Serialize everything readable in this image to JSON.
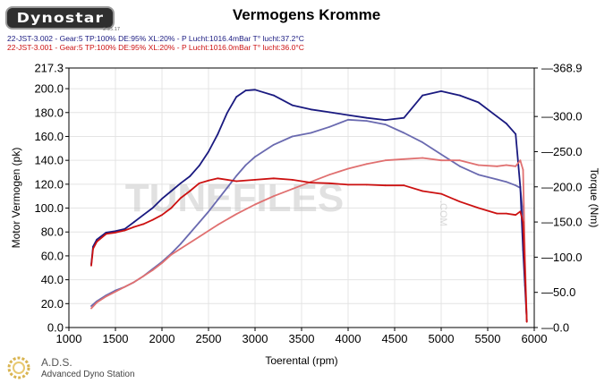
{
  "header": {
    "logo_text": "Dynostar",
    "logo_small": "2.35.17",
    "title": "Vermogens Kromme"
  },
  "runs": [
    {
      "label": "22-JST-3.002 - Gear:5 TP:100% DE:95% XL:20%   - P Lucht:1016.4mBar T° lucht:37.2°C",
      "color": "#1a1a80"
    },
    {
      "label": "22-JST-3.001 - Gear:5 TP:100% DE:95% XL:20%   - P Lucht:1016.0mBar T° lucht:36.0°C",
      "color": "#cc1111"
    }
  ],
  "watermark": {
    "text": "TUNEFILES",
    "suffix": ".COM"
  },
  "footer": {
    "name": "A.D.S.",
    "subtitle": "Advanced Dyno Station"
  },
  "chart_data": {
    "type": "line",
    "title": "Vermogens Kromme",
    "xlabel": "Toerental (rpm)",
    "ylabel": "Motor Vermogen (pk)",
    "y2label": "Torque (Nm)",
    "xlim": [
      1000,
      6000
    ],
    "ylim": [
      0,
      217.3
    ],
    "y2lim": [
      0,
      368.9
    ],
    "x_ticks": [
      1000,
      1500,
      2000,
      2500,
      3000,
      3500,
      4000,
      4500,
      5000,
      5500,
      6000
    ],
    "y_ticks": [
      "0.0",
      "20.0",
      "40.0",
      "60.0",
      "80.0",
      "100.0",
      "120.0",
      "140.0",
      "160.0",
      "180.0",
      "200.0",
      "217.3"
    ],
    "y2_ticks": [
      "0.0",
      "50.0",
      "100.0",
      "150.0",
      "200.0",
      "250.0",
      "300.0",
      "368.9"
    ],
    "grid": true,
    "series": [
      {
        "name": "22-JST-3.002",
        "kind": "power",
        "axis": "left",
        "color": "#6a6ab0",
        "x": [
          1240,
          1300,
          1400,
          1500,
          1600,
          1700,
          1800,
          1900,
          2000,
          2100,
          2200,
          2300,
          2400,
          2500,
          2600,
          2700,
          2800,
          2900,
          3000,
          3200,
          3400,
          3600,
          3800,
          4000,
          4200,
          4400,
          4600,
          4800,
          5000,
          5200,
          5400,
          5600,
          5700,
          5800,
          5850,
          5880,
          5900,
          5920
        ],
        "y": [
          18,
          22,
          27,
          31,
          34,
          38,
          43,
          49,
          55,
          62,
          70,
          79,
          88,
          97,
          107,
          117,
          127,
          136,
          143,
          153,
          160,
          163,
          168,
          174,
          173,
          170,
          163,
          155,
          145,
          135,
          128,
          124,
          122,
          119,
          117,
          95,
          45,
          5
        ]
      },
      {
        "name": "22-JST-3.002",
        "kind": "torque",
        "axis": "right",
        "color": "#1a1a80",
        "x": [
          1240,
          1260,
          1300,
          1400,
          1500,
          1600,
          1700,
          1800,
          1900,
          2000,
          2100,
          2200,
          2300,
          2400,
          2500,
          2600,
          2700,
          2800,
          2900,
          3000,
          3200,
          3400,
          3600,
          3800,
          4000,
          4200,
          4400,
          4600,
          4800,
          5000,
          5200,
          5400,
          5600,
          5700,
          5800,
          5850,
          5880,
          5900,
          5920
        ],
        "y": [
          90,
          115,
          125,
          135,
          137,
          140,
          150,
          160,
          170,
          183,
          194,
          205,
          215,
          230,
          250,
          275,
          305,
          328,
          337,
          338,
          330,
          316,
          310,
          306,
          302,
          298,
          295,
          298,
          330,
          336,
          330,
          320,
          300,
          290,
          275,
          200,
          110,
          60,
          10
        ]
      },
      {
        "name": "22-JST-3.001",
        "kind": "power",
        "axis": "left",
        "color": "#e07070",
        "x": [
          1240,
          1300,
          1400,
          1500,
          1600,
          1700,
          1800,
          1900,
          2000,
          2100,
          2200,
          2400,
          2600,
          2800,
          3000,
          3200,
          3400,
          3600,
          3800,
          4000,
          4200,
          4400,
          4600,
          4800,
          5000,
          5200,
          5400,
          5600,
          5700,
          5800,
          5850,
          5880,
          5900,
          5920
        ],
        "y": [
          16,
          21,
          26,
          30,
          34,
          38,
          43,
          48,
          54,
          61,
          66,
          76,
          86,
          95,
          103,
          110,
          116,
          122,
          128,
          133,
          137,
          140,
          141,
          142,
          140,
          140,
          136,
          135,
          136,
          135,
          140,
          132,
          60,
          5
        ]
      },
      {
        "name": "22-JST-3.001",
        "kind": "torque",
        "axis": "right",
        "color": "#cc1111",
        "x": [
          1240,
          1260,
          1300,
          1400,
          1500,
          1600,
          1700,
          1800,
          1900,
          2000,
          2100,
          2200,
          2300,
          2400,
          2500,
          2600,
          2800,
          3000,
          3200,
          3400,
          3600,
          3800,
          4000,
          4200,
          4400,
          4600,
          4800,
          5000,
          5200,
          5400,
          5600,
          5700,
          5800,
          5850,
          5880,
          5900,
          5920
        ],
        "y": [
          88,
          112,
          122,
          133,
          135,
          138,
          143,
          147,
          153,
          160,
          170,
          184,
          194,
          205,
          209,
          212,
          208,
          210,
          212,
          210,
          206,
          205,
          203,
          203,
          202,
          202,
          194,
          190,
          179,
          170,
          162,
          162,
          160,
          165,
          150,
          80,
          8
        ]
      }
    ]
  }
}
